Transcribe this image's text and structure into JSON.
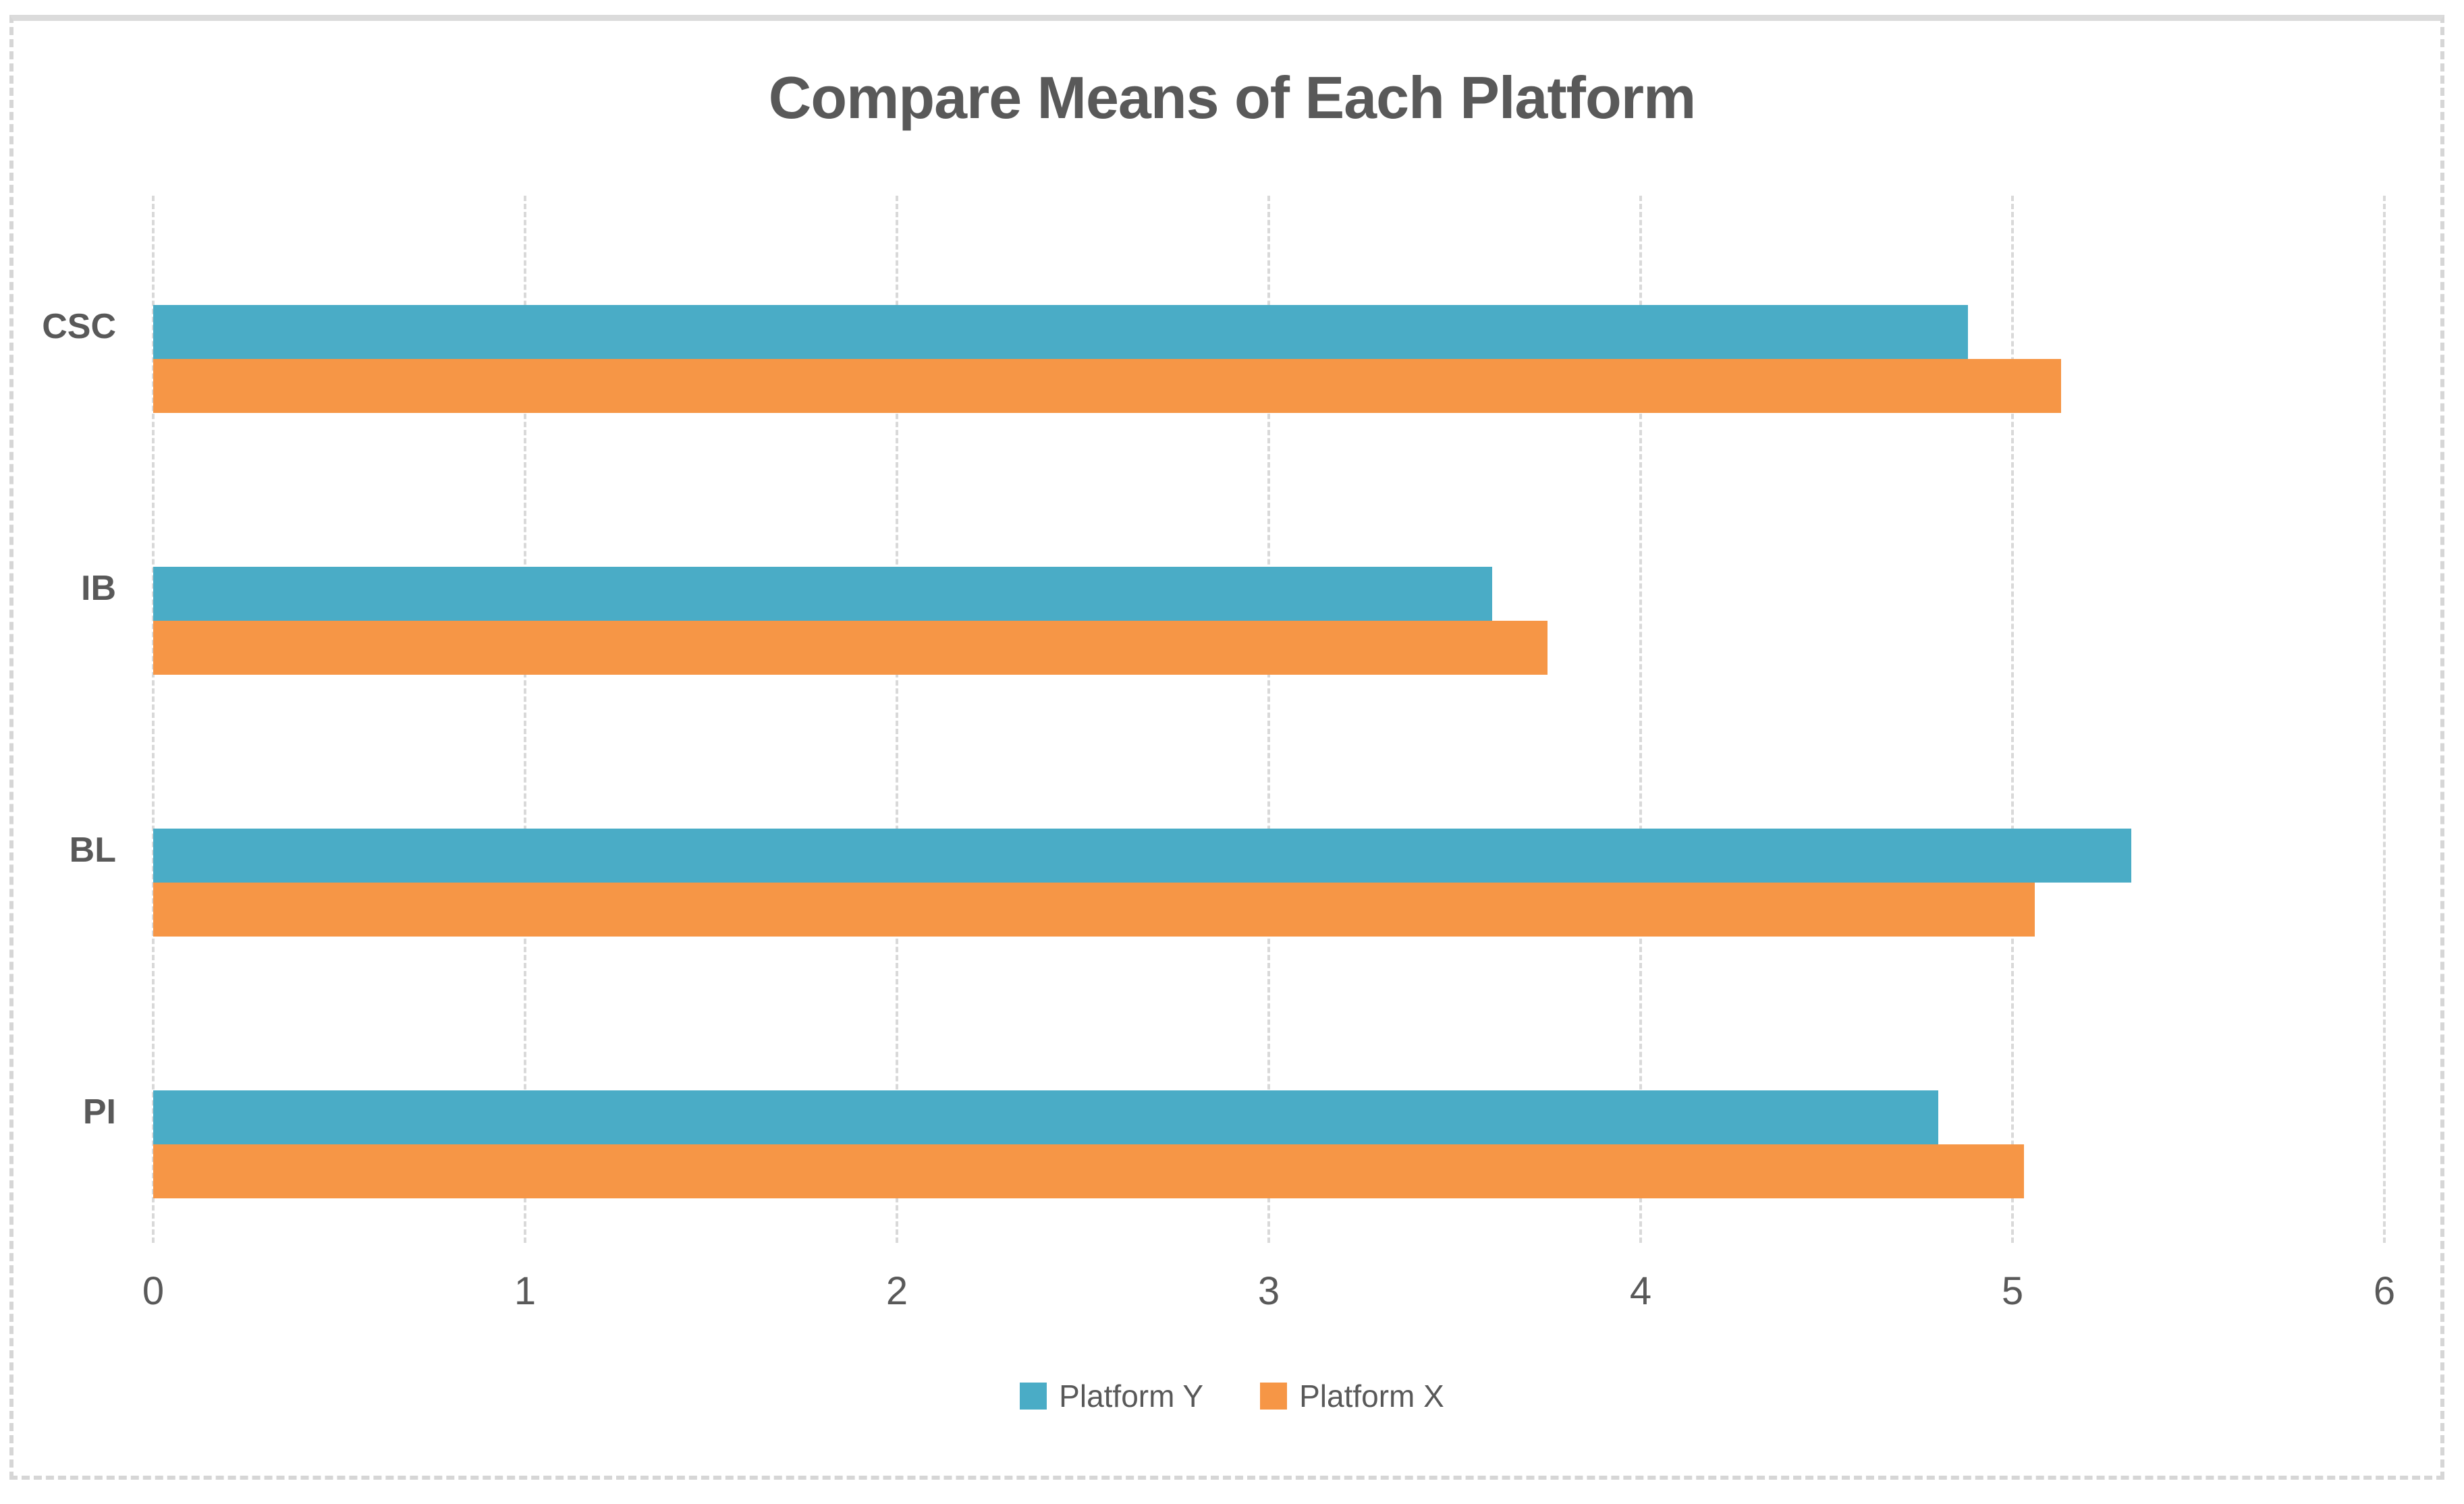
{
  "chart_data": {
    "type": "bar",
    "orientation": "horizontal",
    "title": "Compare Means of Each Platform",
    "categories": [
      "CSC",
      "IB",
      "BL",
      "PI"
    ],
    "series": [
      {
        "name": "Platform Y",
        "color": "#4AACC6",
        "values": [
          4.88,
          3.6,
          5.32,
          4.8
        ]
      },
      {
        "name": "Platform X",
        "color": "#F69646",
        "values": [
          5.13,
          3.75,
          5.06,
          5.03
        ]
      }
    ],
    "xlim": [
      0,
      6
    ],
    "x_ticks": [
      "0",
      "1",
      "2",
      "3",
      "4",
      "5",
      "6"
    ],
    "grid": "vertical-dashed",
    "legend_position": "bottom"
  },
  "colors": {
    "text": "#595959",
    "gridline": "#D9D9D9",
    "frame_border": "#DBDBDB",
    "background": "#FFFFFF"
  }
}
